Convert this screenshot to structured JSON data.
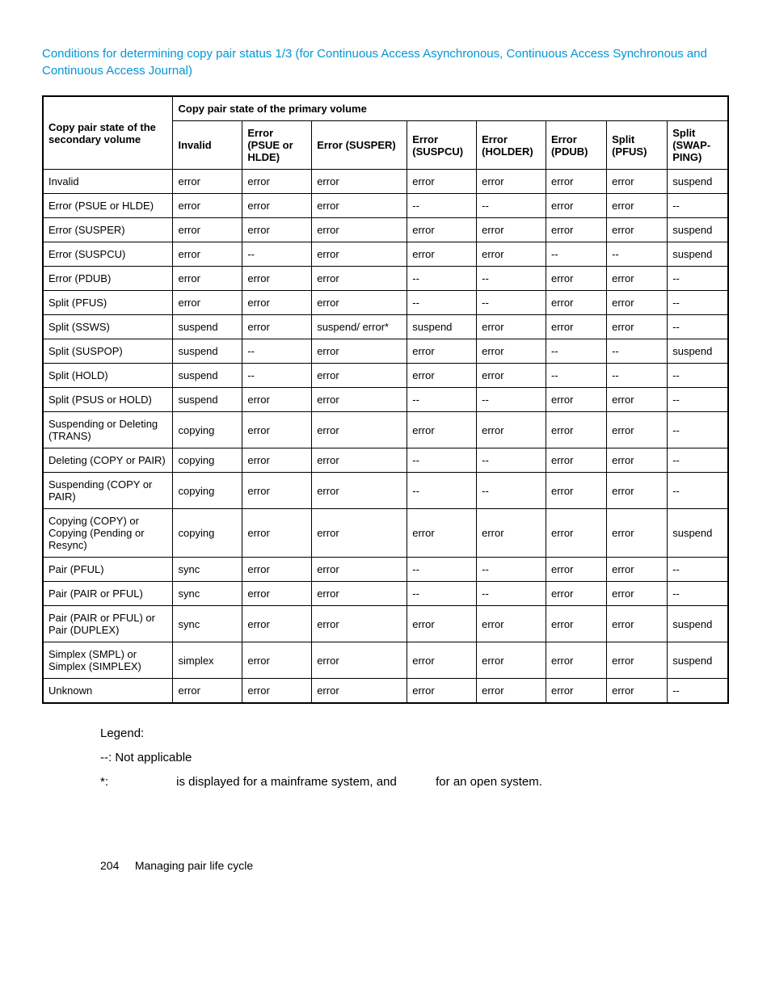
{
  "title": "Conditions for determining copy pair status 1/3 (for Continuous Access Asynchronous, Continuous Access Synchronous and Continuous Access Journal)",
  "header": {
    "rowHeader": "Copy pair state of the secondary volume",
    "groupHeader": "Copy pair state of the primary volume",
    "cols": [
      "Invalid",
      "Error (PSUE or HLDE)",
      "Error (SUS­PER)",
      "Error (SUSPCU)",
      "Error (HOLDER)",
      "Error (PDUB)",
      "Split (PFUS)",
      "Split (SWAP­PING)"
    ]
  },
  "rows": [
    {
      "label": "Invalid",
      "cells": [
        "error",
        "error",
        "error",
        "error",
        "error",
        "error",
        "error",
        "suspend"
      ]
    },
    {
      "label": "Error (PSUE or HLDE)",
      "cells": [
        "error",
        "error",
        "error",
        "--",
        "--",
        "error",
        "error",
        "--"
      ]
    },
    {
      "label": "Error (SUSPER)",
      "cells": [
        "error",
        "error",
        "error",
        "error",
        "error",
        "error",
        "error",
        "suspend"
      ]
    },
    {
      "label": "Error (SUSPCU)",
      "cells": [
        "error",
        "--",
        "error",
        "error",
        "error",
        "--",
        "--",
        "suspend"
      ]
    },
    {
      "label": "Error (PDUB)",
      "cells": [
        "error",
        "error",
        "error",
        "--",
        "--",
        "error",
        "error",
        "--"
      ]
    },
    {
      "label": "Split (PFUS)",
      "cells": [
        "error",
        "error",
        "error",
        "--",
        "--",
        "error",
        "error",
        "--"
      ]
    },
    {
      "label": "Split (SSWS)",
      "cells": [
        "suspend",
        "error",
        "suspend/ er­ror*",
        "suspend",
        "error",
        "error",
        "error",
        "--"
      ]
    },
    {
      "label": "Split (SUSPOP)",
      "cells": [
        "suspend",
        "--",
        "error",
        "error",
        "error",
        "--",
        "--",
        "suspend"
      ]
    },
    {
      "label": "Split (HOLD)",
      "cells": [
        "suspend",
        "--",
        "error",
        "error",
        "error",
        "--",
        "--",
        "--"
      ]
    },
    {
      "label": "Split (PSUS or HOLD)",
      "cells": [
        "suspend",
        "error",
        "error",
        "--",
        "--",
        "error",
        "error",
        "--"
      ]
    },
    {
      "label": "Suspending or Delet­ing (TRANS)",
      "cells": [
        "copying",
        "error",
        "error",
        "error",
        "error",
        "error",
        "error",
        "--"
      ]
    },
    {
      "label": "Deleting (COPY or PAIR)",
      "cells": [
        "copying",
        "error",
        "error",
        "--",
        "--",
        "error",
        "error",
        "--"
      ]
    },
    {
      "label": "Suspending (COPY or PAIR)",
      "cells": [
        "copying",
        "error",
        "error",
        "--",
        "--",
        "error",
        "error",
        "--"
      ]
    },
    {
      "label": "Copying (COPY) or Copying (Pending or Resync)",
      "cells": [
        "copying",
        "error",
        "error",
        "error",
        "error",
        "error",
        "error",
        "suspend"
      ]
    },
    {
      "label": "Pair (PFUL)",
      "cells": [
        "sync",
        "error",
        "error",
        "--",
        "--",
        "error",
        "error",
        "--"
      ]
    },
    {
      "label": "Pair (PAIR or PFUL)",
      "cells": [
        "sync",
        "error",
        "error",
        "--",
        "--",
        "error",
        "error",
        "--"
      ]
    },
    {
      "label": "Pair (PAIR or PFUL) or Pair (DUPLEX)",
      "cells": [
        "sync",
        "error",
        "error",
        "error",
        "error",
        "error",
        "error",
        "suspend"
      ]
    },
    {
      "label": "Simplex (SMPL) or Simplex (SIMPLEX)",
      "cells": [
        "simplex",
        "error",
        "error",
        "error",
        "error",
        "error",
        "error",
        "suspend"
      ]
    },
    {
      "label": "Unknown",
      "cells": [
        "error",
        "error",
        "error",
        "error",
        "error",
        "error",
        "error",
        "--"
      ]
    }
  ],
  "legend": {
    "heading": "Legend:",
    "line1": "--: Not applicable",
    "line2_a": "*:",
    "line2_b": "is displayed for a mainframe system, and",
    "line2_c": "for an open system."
  },
  "footer": {
    "page": "204",
    "section": "Managing pair life cycle"
  }
}
